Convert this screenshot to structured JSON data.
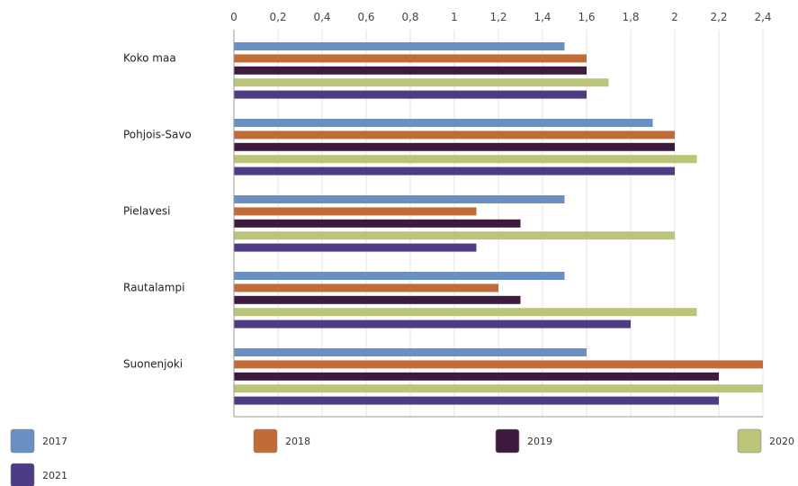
{
  "chart_data": {
    "type": "bar",
    "orientation": "horizontal",
    "categories": [
      "Koko maa",
      "Pohjois-Savo",
      "Pielavesi",
      "Rautalampi",
      "Suonenjoki"
    ],
    "series": [
      {
        "name": "2017",
        "color": "#6a8fc2",
        "values": [
          1.5,
          1.9,
          1.5,
          1.5,
          1.6
        ]
      },
      {
        "name": "2018",
        "color": "#c16c36",
        "values": [
          1.6,
          2.0,
          1.1,
          1.2,
          2.4
        ]
      },
      {
        "name": "2019",
        "color": "#3d1a3e",
        "values": [
          1.6,
          2.0,
          1.3,
          1.3,
          2.2
        ]
      },
      {
        "name": "2020",
        "color": "#bcc47a",
        "values": [
          1.7,
          2.1,
          2.0,
          2.1,
          2.4
        ]
      },
      {
        "name": "2021",
        "color": "#4d3b84",
        "values": [
          1.6,
          2.0,
          1.1,
          1.8,
          2.2
        ]
      }
    ],
    "xlim": [
      0,
      2.4
    ],
    "ticks": [
      0,
      0.2,
      0.4,
      0.6,
      0.8,
      1,
      1.2,
      1.4,
      1.6,
      1.8,
      2,
      2.2,
      2.4
    ],
    "tick_labels": [
      "0",
      "0,2",
      "0,4",
      "0,6",
      "0,8",
      "1",
      "1,2",
      "1,4",
      "1,6",
      "1,8",
      "2",
      "2,2",
      "2,4"
    ],
    "axis_position": "top",
    "grid": true,
    "legend_position": "bottom",
    "title": "",
    "xlabel": "",
    "ylabel": ""
  }
}
